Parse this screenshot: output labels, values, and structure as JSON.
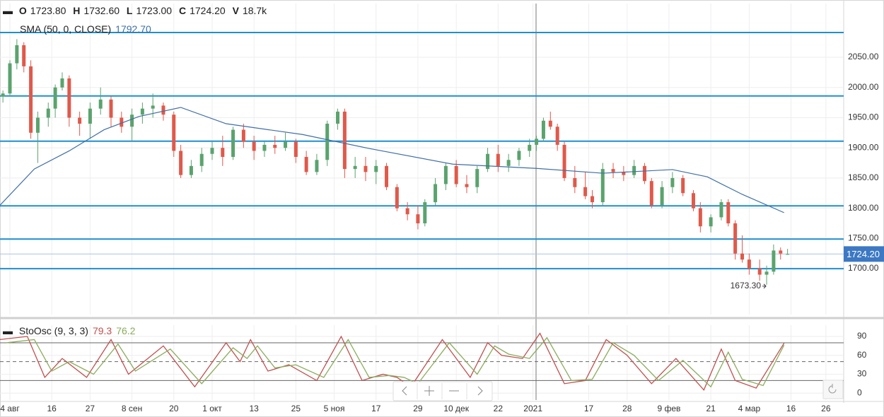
{
  "chart_data": [
    {
      "type": "candlestick",
      "header": [
        {
          "label": "O",
          "value": 1723.8,
          "value_label": "1723.80"
        },
        {
          "label": "H",
          "value": 1732.6,
          "value_label": "1732.60"
        },
        {
          "label": "L",
          "value": 1723.0,
          "value_label": "1723.00"
        },
        {
          "label": "C",
          "value": 1724.2,
          "value_label": "1724.20"
        },
        {
          "label": "V",
          "value": 18700,
          "value_label": "18.7k"
        }
      ],
      "up_color": "#5aa36d",
      "down_color": "#e0594a",
      "x": [
        -2,
        0,
        2,
        4,
        6,
        8,
        11,
        13,
        15,
        17,
        20,
        23,
        26,
        29,
        32,
        35,
        38,
        41,
        44,
        47,
        49,
        52,
        55,
        58,
        61,
        64,
        67,
        70,
        73,
        76,
        79,
        82,
        85,
        88,
        91,
        94,
        96,
        99,
        102,
        105,
        108,
        111,
        114,
        117,
        119,
        122,
        125,
        128,
        131,
        134,
        137,
        140,
        143,
        146,
        149,
        151,
        153,
        155,
        157,
        159,
        162,
        165,
        167,
        170,
        173,
        176,
        179,
        182,
        184,
        187,
        190,
        193,
        196,
        198,
        201,
        204,
        206,
        208,
        210,
        212,
        215,
        217,
        219,
        221,
        223
      ],
      "open": [
        1985,
        1990,
        2040,
        2070,
        2035,
        1925,
        1950,
        1965,
        2000,
        2015,
        1950,
        1940,
        1965,
        1980,
        1950,
        1935,
        1955,
        1965,
        1970,
        1955,
        1895,
        1855,
        1870,
        1890,
        1900,
        1885,
        1930,
        1910,
        1895,
        1905,
        1900,
        1910,
        1885,
        1860,
        1880,
        1940,
        1960,
        1865,
        1870,
        1860,
        1870,
        1835,
        1800,
        1790,
        1775,
        1810,
        1840,
        1870,
        1840,
        1835,
        1865,
        1890,
        1870,
        1880,
        1895,
        1905,
        1915,
        1945,
        1935,
        1905,
        1850,
        1835,
        1820,
        1810,
        1865,
        1860,
        1855,
        1870,
        1845,
        1805,
        1835,
        1850,
        1825,
        1800,
        1770,
        1785,
        1810,
        1775,
        1725,
        1715,
        1700,
        1690,
        1695,
        1730,
        1723.8
      ],
      "high": [
        1995,
        2045,
        2080,
        2075,
        2045,
        1960,
        1975,
        2005,
        2025,
        2020,
        1960,
        1975,
        2000,
        1985,
        1960,
        1965,
        1975,
        1990,
        1975,
        1960,
        1905,
        1880,
        1900,
        1910,
        1920,
        1935,
        1940,
        1920,
        1910,
        1920,
        1925,
        1915,
        1895,
        1890,
        1945,
        1965,
        1965,
        1885,
        1885,
        1880,
        1875,
        1840,
        1810,
        1805,
        1815,
        1850,
        1875,
        1880,
        1855,
        1870,
        1900,
        1905,
        1890,
        1900,
        1915,
        1920,
        1950,
        1960,
        1940,
        1910,
        1870,
        1860,
        1830,
        1875,
        1875,
        1870,
        1880,
        1875,
        1850,
        1845,
        1860,
        1855,
        1830,
        1810,
        1790,
        1815,
        1815,
        1780,
        1755,
        1725,
        1715,
        1705,
        1740,
        1735,
        1732.6
      ],
      "low": [
        1975,
        1985,
        2030,
        2025,
        1915,
        1875,
        1935,
        1950,
        1995,
        1935,
        1920,
        1915,
        1955,
        1935,
        1925,
        1910,
        1940,
        1950,
        1945,
        1885,
        1850,
        1850,
        1860,
        1880,
        1870,
        1880,
        1900,
        1880,
        1885,
        1890,
        1895,
        1875,
        1855,
        1855,
        1870,
        1930,
        1850,
        1850,
        1845,
        1840,
        1830,
        1795,
        1780,
        1765,
        1770,
        1805,
        1830,
        1835,
        1825,
        1825,
        1860,
        1860,
        1860,
        1870,
        1885,
        1895,
        1910,
        1930,
        1895,
        1845,
        1825,
        1815,
        1800,
        1805,
        1850,
        1845,
        1850,
        1840,
        1800,
        1800,
        1825,
        1820,
        1795,
        1760,
        1760,
        1780,
        1770,
        1715,
        1710,
        1690,
        1680,
        1673.3,
        1690,
        1715,
        1723.0
      ],
      "close": [
        1990,
        2040,
        2070,
        2035,
        1925,
        1950,
        1965,
        2000,
        2015,
        1950,
        1940,
        1965,
        1980,
        1950,
        1935,
        1955,
        1965,
        1970,
        1955,
        1895,
        1855,
        1870,
        1890,
        1900,
        1885,
        1930,
        1910,
        1895,
        1905,
        1900,
        1910,
        1885,
        1860,
        1880,
        1940,
        1960,
        1865,
        1870,
        1860,
        1870,
        1835,
        1800,
        1790,
        1775,
        1810,
        1840,
        1870,
        1840,
        1835,
        1865,
        1890,
        1870,
        1880,
        1895,
        1905,
        1915,
        1945,
        1935,
        1905,
        1850,
        1835,
        1820,
        1810,
        1865,
        1860,
        1855,
        1870,
        1845,
        1805,
        1835,
        1850,
        1825,
        1800,
        1770,
        1785,
        1810,
        1775,
        1725,
        1715,
        1700,
        1690,
        1695,
        1730,
        1725,
        1724.2
      ],
      "indicators": [
        {
          "name": "SMA (50, 0, CLOSE)",
          "color": "#3f6fa6",
          "last_label": "1792.70",
          "x": [
            -3,
            7,
            17,
            27,
            37,
            49,
            62,
            84,
            103,
            127,
            151,
            170,
            190,
            200,
            210,
            222
          ],
          "values": [
            1804,
            1865,
            1895,
            1930,
            1952,
            1967,
            1940,
            1922,
            1899,
            1873,
            1866,
            1858,
            1864,
            1852,
            1823,
            1792.7
          ]
        }
      ],
      "levels": [
        2091,
        1986,
        1911,
        1804,
        1749,
        1700
      ],
      "level_color": "#1e8fd0",
      "last_price": {
        "value": 1724.2,
        "label": "1724.20",
        "color": "#3c78c3"
      },
      "annotation": {
        "x": 217,
        "value": 1673.3,
        "label": "1673.30"
      },
      "xlim": [
        -2.84,
        239.1
      ],
      "ylim": [
        1624,
        2139
      ],
      "yticks": [
        {
          "value": 1700,
          "label": "1700.00"
        },
        {
          "value": 1750,
          "label": "1750.00"
        },
        {
          "value": 1800,
          "label": "1800.00"
        },
        {
          "value": 1850,
          "label": "1850.00"
        },
        {
          "value": 1900,
          "label": "1900.00"
        },
        {
          "value": 1950,
          "label": "1950.00"
        },
        {
          "value": 2000,
          "label": "2000.00"
        },
        {
          "value": 2050,
          "label": "2050.00"
        }
      ],
      "grid": true
    },
    {
      "type": "line",
      "title": "StoOsc (9, 3, 3)",
      "series": [
        {
          "color": "#c0504d",
          "last_label": "79.3",
          "x": [
            -3,
            5,
            10,
            15,
            22,
            29,
            34,
            44,
            53,
            62,
            66,
            69,
            74,
            80,
            88,
            95,
            101,
            107,
            111,
            115,
            124,
            132,
            137,
            141,
            147,
            152,
            159,
            165,
            171,
            177,
            184,
            191,
            199,
            204,
            208,
            214,
            222
          ],
          "values": [
            85,
            90,
            25,
            55,
            25,
            85,
            30,
            75,
            10,
            80,
            50,
            85,
            35,
            45,
            20,
            90,
            20,
            30,
            25,
            10,
            85,
            25,
            80,
            60,
            55,
            95,
            15,
            20,
            85,
            60,
            15,
            55,
            5,
            70,
            20,
            8,
            79.3
          ]
        },
        {
          "color": "#8aac5c",
          "last_label": "76.2",
          "x": [
            -1,
            7,
            12,
            17,
            24,
            31,
            36,
            46,
            55,
            64,
            68,
            71,
            76,
            82,
            90,
            97,
            103,
            109,
            113,
            117,
            126,
            134,
            139,
            143,
            149,
            154,
            161,
            167,
            173,
            179,
            186,
            193,
            201,
            206,
            210,
            216,
            222
          ],
          "values": [
            80,
            85,
            35,
            50,
            30,
            78,
            35,
            70,
            15,
            72,
            55,
            75,
            40,
            45,
            25,
            85,
            25,
            28,
            25,
            15,
            80,
            30,
            75,
            62,
            55,
            88,
            20,
            22,
            80,
            60,
            20,
            52,
            10,
            65,
            22,
            12,
            76.2
          ]
        }
      ],
      "levels": [
        20,
        50,
        80
      ],
      "xlim": [
        -2.84,
        239.1
      ],
      "ylim": [
        -11,
        108
      ],
      "yticks": [
        0,
        30,
        60,
        90
      ],
      "xticks": [
        {
          "value": 0,
          "label": "4 авг"
        },
        {
          "value": 12,
          "label": "16"
        },
        {
          "value": 23,
          "label": "27"
        },
        {
          "value": 35,
          "label": "8 сен"
        },
        {
          "value": 47,
          "label": "20"
        },
        {
          "value": 58,
          "label": "1 окт"
        },
        {
          "value": 70,
          "label": "13"
        },
        {
          "value": 82,
          "label": "25"
        },
        {
          "value": 93,
          "label": "5 ноя"
        },
        {
          "value": 105,
          "label": "17"
        },
        {
          "value": 117,
          "label": "29"
        },
        {
          "value": 128,
          "label": "10 дек"
        },
        {
          "value": 140,
          "label": "22"
        },
        {
          "value": 150,
          "label": "2021"
        },
        {
          "value": 166,
          "label": "17"
        },
        {
          "value": 177,
          "label": "28"
        },
        {
          "value": 189,
          "label": "9 фев"
        },
        {
          "value": 201,
          "label": "21"
        },
        {
          "value": 212,
          "label": "4 мар"
        },
        {
          "value": 224,
          "label": "16"
        },
        {
          "value": 234,
          "label": "26"
        }
      ],
      "grid": true
    }
  ]
}
